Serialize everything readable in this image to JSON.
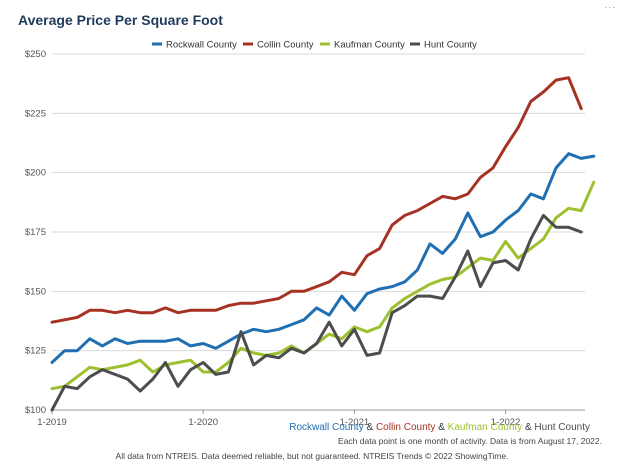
{
  "top_mark": "...",
  "chart_data": {
    "type": "line",
    "title": "Average Price Per Square Foot",
    "x_tick_labels": [
      "1-2019",
      "1-2020",
      "1-2021",
      "1-2022"
    ],
    "x_tick_index": [
      0,
      12,
      24,
      36
    ],
    "y_tick_labels": [
      "$100",
      "$125",
      "$150",
      "$175",
      "$200",
      "$225",
      "$250"
    ],
    "y_ticks": [
      100,
      125,
      150,
      175,
      200,
      225,
      250
    ],
    "ylim": [
      100,
      250
    ],
    "grid": true,
    "legend_position": "top",
    "series": [
      {
        "name": "Rockwall County",
        "color": "#1f6fb2",
        "values": [
          120,
          125,
          125,
          130,
          127,
          130,
          128,
          129,
          129,
          129,
          130,
          127,
          128,
          126,
          129,
          132,
          134,
          133,
          134,
          136,
          138,
          143,
          140,
          148,
          142,
          149,
          151,
          152,
          154,
          159,
          170,
          166,
          172,
          183,
          173,
          175,
          180,
          184,
          191,
          189,
          202,
          208,
          206,
          207
        ]
      },
      {
        "name": "Collin County",
        "color": "#a63224",
        "values": [
          137,
          138,
          139,
          142,
          142,
          141,
          142,
          141,
          141,
          143,
          141,
          142,
          142,
          142,
          144,
          145,
          145,
          146,
          147,
          150,
          150,
          152,
          154,
          158,
          157,
          165,
          168,
          178,
          182,
          184,
          187,
          190,
          189,
          191,
          198,
          202,
          211,
          219,
          230,
          234,
          239,
          240,
          227
        ]
      },
      {
        "name": "Kaufman County",
        "color": "#9dc02e",
        "values": [
          109,
          110,
          114,
          118,
          117,
          118,
          119,
          121,
          116,
          119,
          120,
          121,
          116,
          116,
          120,
          126,
          124,
          123,
          124,
          127,
          124,
          128,
          132,
          130,
          135,
          133,
          135,
          143,
          147,
          150,
          153,
          155,
          156,
          160,
          164,
          163,
          171,
          164,
          168,
          172,
          181,
          185,
          184,
          196
        ]
      },
      {
        "name": "Hunt County",
        "color": "#4d4d4d",
        "values": [
          100,
          110,
          109,
          114,
          117,
          115,
          113,
          108,
          113,
          120,
          110,
          117,
          120,
          115,
          116,
          133,
          119,
          123,
          122,
          126,
          124,
          128,
          137,
          127,
          134,
          123,
          124,
          141,
          144,
          148,
          148,
          147,
          156,
          167,
          152,
          162,
          163,
          159,
          172,
          182,
          177,
          177,
          175
        ]
      }
    ],
    "subtitle_names": [
      "Rockwall County",
      "Collin County",
      "Kaufman County",
      "Hunt County"
    ],
    "subtitle_sep": "&",
    "note": "Each data point is one month of activity. Data is from August 17, 2022.",
    "footer": "All data from NTREIS. Data deemed reliable, but not guaranteed. NTREIS Trends © 2022 ShowingTime."
  }
}
